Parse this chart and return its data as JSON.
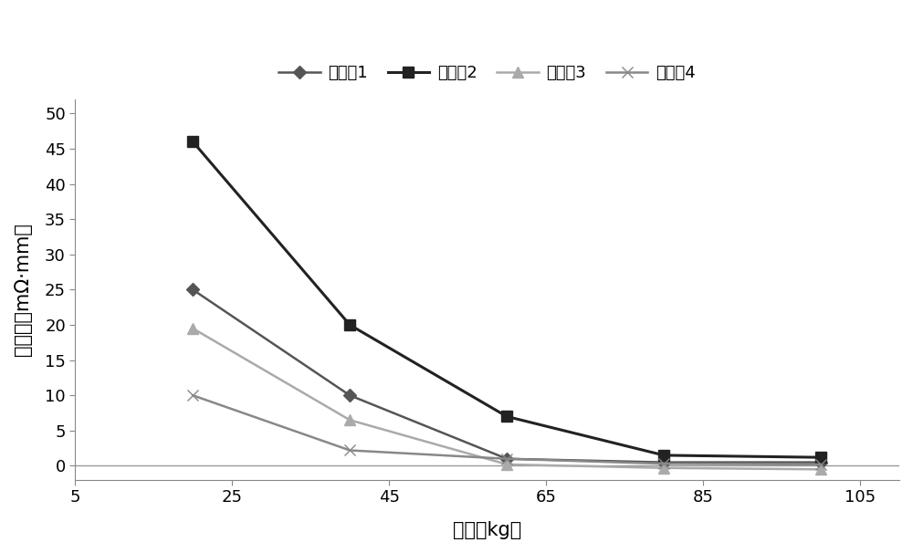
{
  "series": [
    {
      "name": "实施例1",
      "x": [
        20,
        40,
        60,
        80,
        100
      ],
      "y": [
        25,
        10,
        1,
        0.5,
        0.5
      ],
      "color": "#555555",
      "marker": "D",
      "markersize": 7,
      "linewidth": 1.8,
      "linestyle": "-"
    },
    {
      "name": "实施例2",
      "x": [
        20,
        40,
        60,
        80,
        100
      ],
      "y": [
        46,
        20,
        7,
        1.5,
        1.2
      ],
      "color": "#222222",
      "marker": "s",
      "markersize": 9,
      "linewidth": 2.2,
      "linestyle": "-"
    },
    {
      "name": "实施例3",
      "x": [
        20,
        40,
        60,
        80,
        100
      ],
      "y": [
        19.5,
        6.5,
        0.2,
        -0.3,
        -0.5
      ],
      "color": "#aaaaaa",
      "marker": "^",
      "markersize": 8,
      "linewidth": 1.8,
      "linestyle": "-"
    },
    {
      "name": "实施例4",
      "x": [
        20,
        40,
        60,
        80,
        100
      ],
      "y": [
        10,
        2.2,
        1,
        0.3,
        0.2
      ],
      "color": "#888888",
      "marker": "x",
      "markersize": 9,
      "linewidth": 1.8,
      "linestyle": "-"
    }
  ],
  "xlabel": "压力（kg）",
  "ylabel": "电阵率（mΩ·mm）",
  "ylabel_display": "电阵率（mΩ·mm）",
  "xlim": [
    5,
    110
  ],
  "ylim": [
    -2,
    52
  ],
  "xticks": [
    5,
    25,
    45,
    65,
    85,
    105
  ],
  "xtick_labels": [
    "5",
    "25",
    "45",
    "65",
    "85",
    "105"
  ],
  "yticks": [
    0,
    5,
    10,
    15,
    20,
    25,
    30,
    35,
    40,
    45,
    50
  ],
  "ytick_labels": [
    "0",
    "5",
    "10",
    "15",
    "20",
    "25",
    "30",
    "35",
    "40",
    "45",
    "50"
  ],
  "hline_y": 0,
  "hline_color": "#999999",
  "background_color": "#ffffff",
  "legend_ncol": 4,
  "label_fontsize": 15,
  "tick_fontsize": 13,
  "legend_fontsize": 13
}
